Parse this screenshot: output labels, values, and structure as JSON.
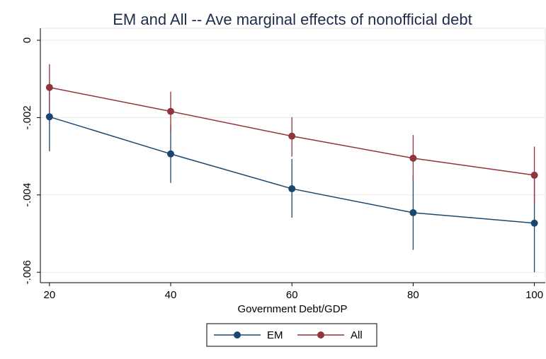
{
  "chart_data": {
    "type": "line",
    "title": "EM and All -- Ave marginal effects of nonofficial debt",
    "x_label": "Government Debt/GDP",
    "x": [
      20,
      40,
      60,
      80,
      100
    ],
    "xlim": [
      18.5,
      101.8
    ],
    "xticks": [
      20,
      40,
      60,
      80,
      100
    ],
    "ylim": [
      -0.00627,
      0.00031
    ],
    "yticks": [
      {
        "value": 0,
        "label": "0"
      },
      {
        "value": -0.002,
        "label": "-.002"
      },
      {
        "value": -0.004,
        "label": "-.004"
      },
      {
        "value": -0.006,
        "label": "-.006"
      }
    ],
    "grid": true,
    "legend": "bottom",
    "series": [
      {
        "name": "EM",
        "color": "#1a476f",
        "values": [
          -0.00198,
          -0.00294,
          -0.00384,
          -0.00446,
          -0.00473
        ],
        "upper": [
          -0.00109,
          -0.00219,
          -0.00307,
          -0.0035,
          -0.00346
        ],
        "lower": [
          -0.00287,
          -0.00369,
          -0.00459,
          -0.00542,
          -0.006
        ]
      },
      {
        "name": "All",
        "color": "#90353b",
        "values": [
          -0.00122,
          -0.00184,
          -0.00248,
          -0.00305,
          -0.00349
        ],
        "upper": [
          -0.00062,
          -0.00133,
          -0.00199,
          -0.00245,
          -0.00275
        ],
        "lower": [
          -0.00187,
          -0.00237,
          -0.00301,
          -0.00367,
          -0.00426
        ]
      }
    ]
  }
}
